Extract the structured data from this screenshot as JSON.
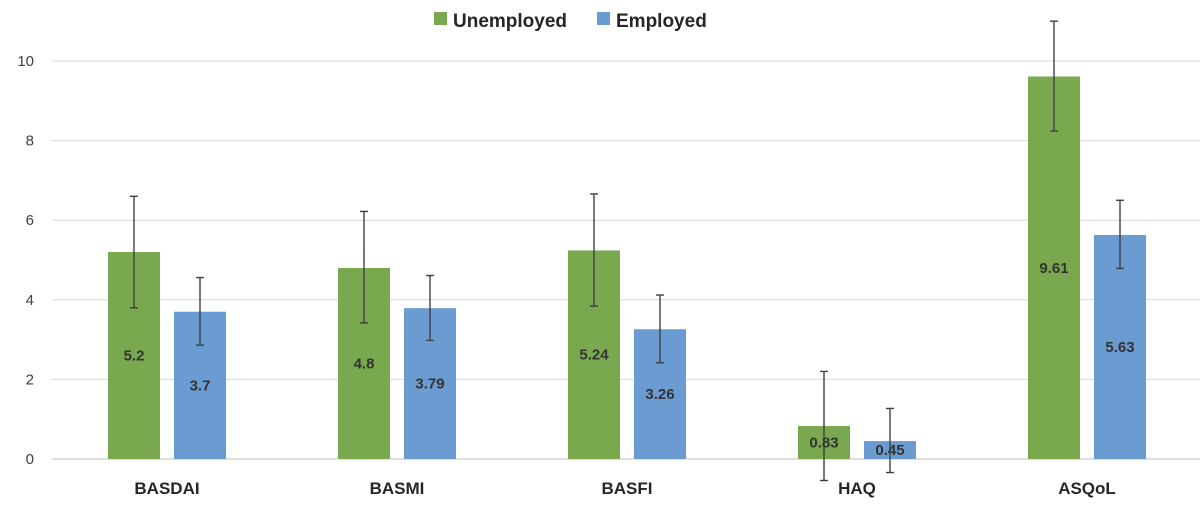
{
  "chart_data": {
    "type": "bar",
    "title": "",
    "xlabel": "",
    "ylabel": "",
    "ylim": [
      0,
      11
    ],
    "yticks": [
      0,
      2,
      4,
      6,
      8,
      10
    ],
    "grid": true,
    "legend_position": "top-center",
    "categories": [
      "BASDAI",
      "BASMI",
      "BASFI",
      "HAQ",
      "ASQoL"
    ],
    "series": [
      {
        "name": "Unemployed",
        "color": "#79A84E",
        "values": [
          5.2,
          4.8,
          5.24,
          0.83,
          9.61
        ],
        "labels": [
          "5.2",
          "4.8",
          "5.24",
          "0.83",
          "9.61"
        ],
        "error_low": [
          3.8,
          3.42,
          3.84,
          -0.54,
          8.24
        ],
        "error_high": [
          6.6,
          6.22,
          6.66,
          2.2,
          11.0
        ]
      },
      {
        "name": "Employed",
        "color": "#6A9CD2",
        "values": [
          3.7,
          3.79,
          3.26,
          0.45,
          5.63
        ],
        "labels": [
          "3.7",
          "3.79",
          "3.26",
          "0.45",
          "5.63"
        ],
        "error_low": [
          2.86,
          2.98,
          2.42,
          -0.34,
          4.79
        ],
        "error_high": [
          4.56,
          4.61,
          4.12,
          1.27,
          6.5
        ]
      }
    ]
  }
}
